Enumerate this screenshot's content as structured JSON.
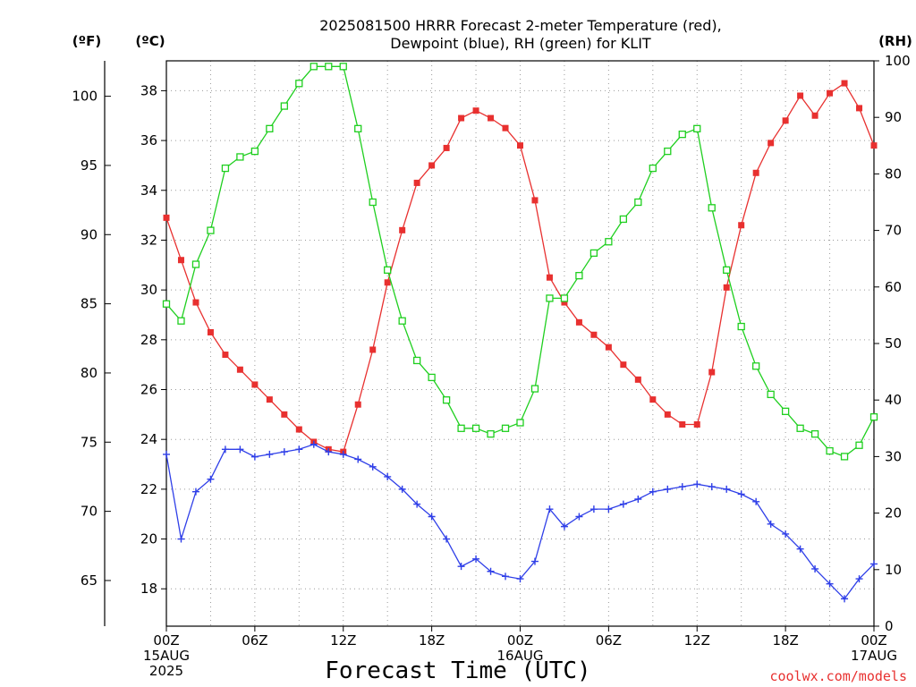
{
  "chart_data": {
    "type": "line",
    "title_lines": [
      "2025081500 HRRR Forecast 2-meter Temperature (red),",
      "Dewpoint (blue), RH (green) for KLIT"
    ],
    "xlabel": "Forecast Time (UTC)",
    "credit": "coolwx.com/models",
    "unit_left_f": "(ºF)",
    "unit_left_c": "(ºC)",
    "unit_right": "(RH)",
    "x_range_hours": [
      0,
      48
    ],
    "y_left_c_range": [
      16.5,
      39.2
    ],
    "y_left_c_ticks": [
      "18",
      "20",
      "22",
      "24",
      "26",
      "28",
      "30",
      "32",
      "34",
      "36",
      "38"
    ],
    "y_left_f_ticks": [
      "65",
      "70",
      "75",
      "80",
      "85",
      "90",
      "95",
      "100"
    ],
    "y_right_range": [
      0,
      100
    ],
    "y_right_ticks": [
      "0",
      "10",
      "20",
      "30",
      "40",
      "50",
      "60",
      "70",
      "80",
      "90",
      "100"
    ],
    "x_ticks": [
      {
        "hour": 0,
        "lines": [
          "00Z",
          "15AUG",
          "2025"
        ]
      },
      {
        "hour": 6,
        "lines": [
          "06Z"
        ]
      },
      {
        "hour": 12,
        "lines": [
          "12Z"
        ]
      },
      {
        "hour": 18,
        "lines": [
          "18Z"
        ]
      },
      {
        "hour": 24,
        "lines": [
          "00Z",
          "16AUG"
        ]
      },
      {
        "hour": 30,
        "lines": [
          "06Z"
        ]
      },
      {
        "hour": 36,
        "lines": [
          "12Z"
        ]
      },
      {
        "hour": 42,
        "lines": [
          "18Z"
        ]
      },
      {
        "hour": 48,
        "lines": [
          "00Z",
          "17AUG"
        ]
      }
    ],
    "grid": true,
    "series": [
      {
        "name": "Temperature",
        "color": "#e8302f",
        "marker": "filled-square",
        "axis": "left_c",
        "values": [
          32.9,
          31.2,
          29.5,
          28.3,
          27.4,
          26.8,
          26.2,
          25.6,
          25.0,
          24.4,
          23.9,
          23.6,
          23.5,
          25.4,
          27.6,
          30.3,
          32.4,
          34.3,
          35.0,
          35.7,
          36.9,
          37.2,
          36.9,
          36.5,
          35.8,
          33.6,
          30.5,
          29.5,
          28.7,
          28.2,
          27.7,
          27.0,
          26.4,
          25.6,
          25.0,
          24.6,
          24.6,
          26.7,
          30.1,
          32.6,
          34.7,
          35.9,
          36.8,
          37.8,
          37.0,
          37.9,
          38.3,
          37.3,
          35.8
        ]
      },
      {
        "name": "Dewpoint",
        "color": "#2f3fe8",
        "marker": "plus",
        "axis": "left_c",
        "values": [
          23.4,
          20.0,
          21.9,
          22.4,
          23.6,
          23.6,
          23.3,
          23.4,
          23.5,
          23.6,
          23.8,
          23.5,
          23.4,
          23.2,
          22.9,
          22.5,
          22.0,
          21.4,
          20.9,
          20.0,
          18.9,
          19.2,
          18.7,
          18.5,
          18.4,
          19.1,
          21.2,
          20.5,
          20.9,
          21.2,
          21.2,
          21.4,
          21.6,
          21.9,
          22.0,
          22.1,
          22.2,
          22.1,
          22.0,
          21.8,
          21.5,
          20.6,
          20.2,
          19.6,
          18.8,
          18.2,
          17.6,
          18.4,
          19.0
        ]
      },
      {
        "name": "RH",
        "color": "#1fcf1f",
        "marker": "open-square",
        "axis": "right",
        "values": [
          57,
          54,
          64,
          70,
          81,
          83,
          84,
          88,
          92,
          96,
          99,
          99,
          99,
          88,
          75,
          63,
          54,
          47,
          44,
          40,
          35,
          35,
          34,
          35,
          36,
          42,
          58,
          58,
          62,
          66,
          68,
          72,
          75,
          81,
          84,
          87,
          88,
          74,
          63,
          53,
          46,
          41,
          38,
          35,
          34,
          31,
          30,
          32,
          37
        ]
      }
    ]
  }
}
